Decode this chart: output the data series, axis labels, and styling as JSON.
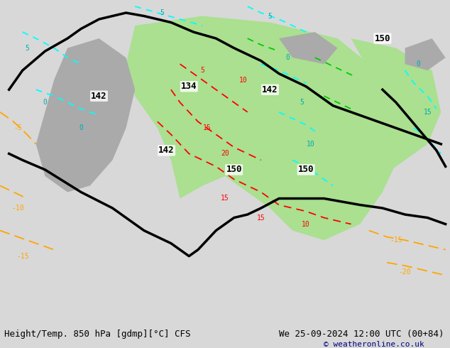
{
  "title_left": "Height/Temp. 850 hPa [gdmp][°C] CFS",
  "title_right": "We 25-09-2024 12:00 UTC (00+84)",
  "copyright": "© weatheronline.co.uk",
  "bg_color": "#d8d8d8",
  "map_bg": "#e8e8e8",
  "text_color": "#000080",
  "bottom_text_color": "#000000",
  "fig_width": 6.34,
  "fig_height": 4.9
}
